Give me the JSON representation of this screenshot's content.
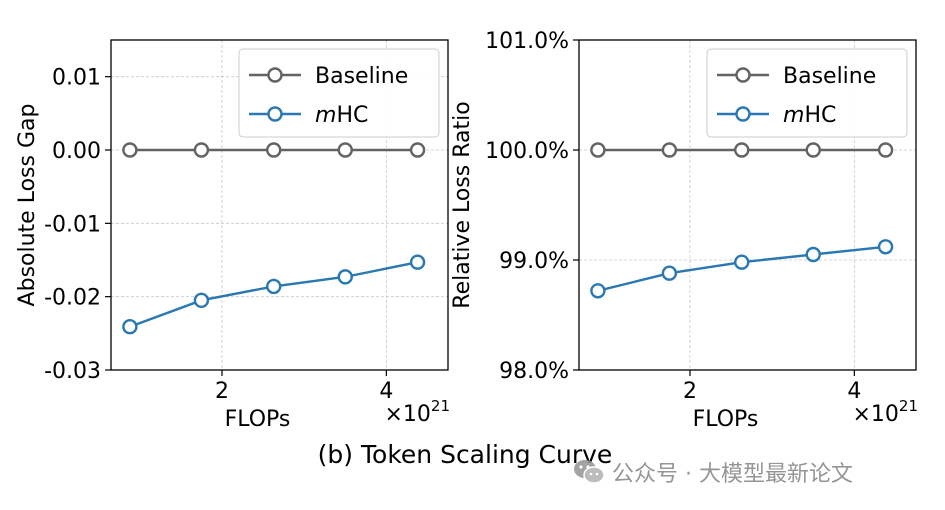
{
  "caption": "(b) Token Scaling Curve",
  "watermark": "公众号 · 大模型最新论文",
  "colors": {
    "baseline": "#636363",
    "mhc": "#2a78b2",
    "grid": "#c8c8c8"
  },
  "chart_data": [
    {
      "type": "line",
      "ylabel": "Absolute Loss Gap",
      "xlabel": "FLOPs",
      "x_multiplier": "×10",
      "x_exponent": "21",
      "xlim": [
        0.65,
        4.75
      ],
      "ylim": [
        -0.03,
        0.015
      ],
      "xticks": [
        2,
        4
      ],
      "xtick_labels": [
        "2",
        "4"
      ],
      "yticks": [
        -0.03,
        -0.02,
        -0.01,
        0,
        0.01
      ],
      "ytick_labels": [
        "-0.03",
        "-0.02",
        "-0.01",
        "0.00",
        "0.01"
      ],
      "x": [
        0.88,
        1.75,
        2.63,
        3.5,
        4.38
      ],
      "series": [
        {
          "name": "Baseline",
          "name_italic": "",
          "name_rest": "Baseline",
          "color": "#636363",
          "values": [
            0.0,
            0.0,
            0.0,
            0.0,
            0.0
          ]
        },
        {
          "name": "mHC",
          "name_italic": "m",
          "name_rest": "HC",
          "color": "#2a78b2",
          "values": [
            -0.0241,
            -0.0205,
            -0.0186,
            -0.0173,
            -0.0153
          ]
        }
      ],
      "grid": true,
      "legend": "top-right"
    },
    {
      "type": "line",
      "ylabel": "Relative Loss Ratio",
      "xlabel": "FLOPs",
      "x_multiplier": "×10",
      "x_exponent": "21",
      "xlim": [
        0.65,
        4.75
      ],
      "ylim": [
        98.0,
        101.0
      ],
      "xticks": [
        2,
        4
      ],
      "xtick_labels": [
        "2",
        "4"
      ],
      "yticks": [
        98.0,
        99.0,
        100.0,
        101.0
      ],
      "ytick_labels": [
        "98.0%",
        "99.0%",
        "100.0%",
        "101.0%"
      ],
      "x": [
        0.88,
        1.75,
        2.63,
        3.5,
        4.38
      ],
      "series": [
        {
          "name": "Baseline",
          "name_italic": "",
          "name_rest": "Baseline",
          "color": "#636363",
          "values": [
            100.0,
            100.0,
            100.0,
            100.0,
            100.0
          ]
        },
        {
          "name": "mHC",
          "name_italic": "m",
          "name_rest": "HC",
          "color": "#2a78b2",
          "values": [
            98.72,
            98.88,
            98.98,
            99.05,
            99.12
          ]
        }
      ],
      "grid": true,
      "legend": "top-right"
    }
  ]
}
